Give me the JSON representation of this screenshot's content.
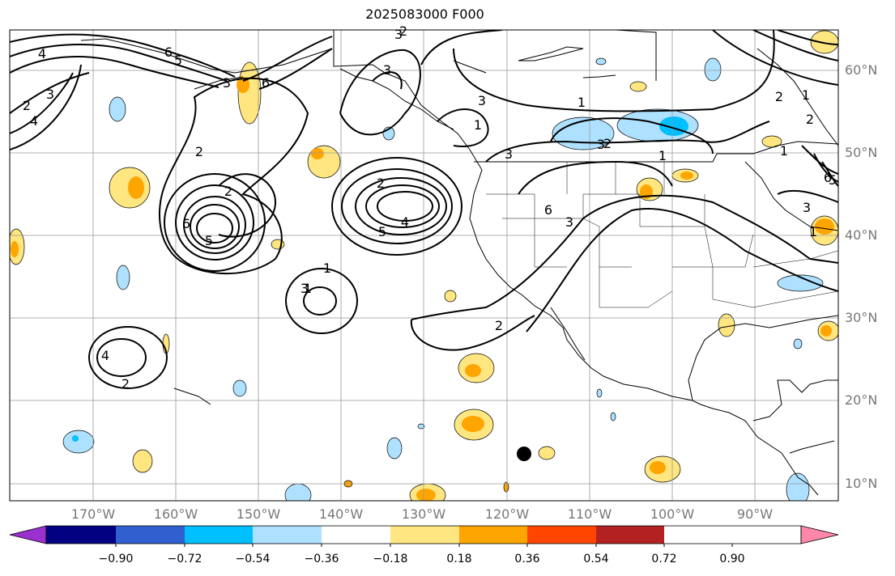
{
  "title": "2025083000 F000",
  "map": {
    "projection": "plate-carree",
    "lon_range": [
      -180,
      -80
    ],
    "lat_range": [
      8,
      65
    ],
    "gridlines": true,
    "lat_labels": [
      "60°N",
      "50°N",
      "40°N",
      "30°N",
      "20°N",
      "10°N"
    ],
    "lon_labels": [
      "170°W",
      "160°W",
      "150°W",
      "140°W",
      "130°W",
      "120°W",
      "110°W",
      "100°W",
      "90°W"
    ],
    "contour_labels": [
      "4",
      "6",
      "5",
      "3",
      "2",
      "4",
      "6",
      "3",
      "3",
      "2",
      "1",
      "3",
      "2",
      "3",
      "3",
      "6",
      "5",
      "4",
      "2",
      "1",
      "2",
      "4",
      "2",
      "6",
      "5",
      "3",
      "3",
      "1",
      "2",
      "2",
      "1",
      "1",
      "1",
      "3",
      "5",
      "2",
      "1",
      "3",
      "1",
      "2",
      "6"
    ],
    "marker": "black-dot"
  },
  "colorbar": {
    "ticks": [
      "−0.90",
      "−0.72",
      "−0.54",
      "−0.36",
      "−0.18",
      "0.18",
      "0.36",
      "0.54",
      "0.72",
      "0.90"
    ],
    "colors": [
      "#9b30d0",
      "#000080",
      "#3060d0",
      "#00bfff",
      "#aee0ff",
      "#ffffff",
      "#ffe680",
      "#ffa500",
      "#ff4500",
      "#b22222",
      "#ff88aa"
    ]
  }
}
